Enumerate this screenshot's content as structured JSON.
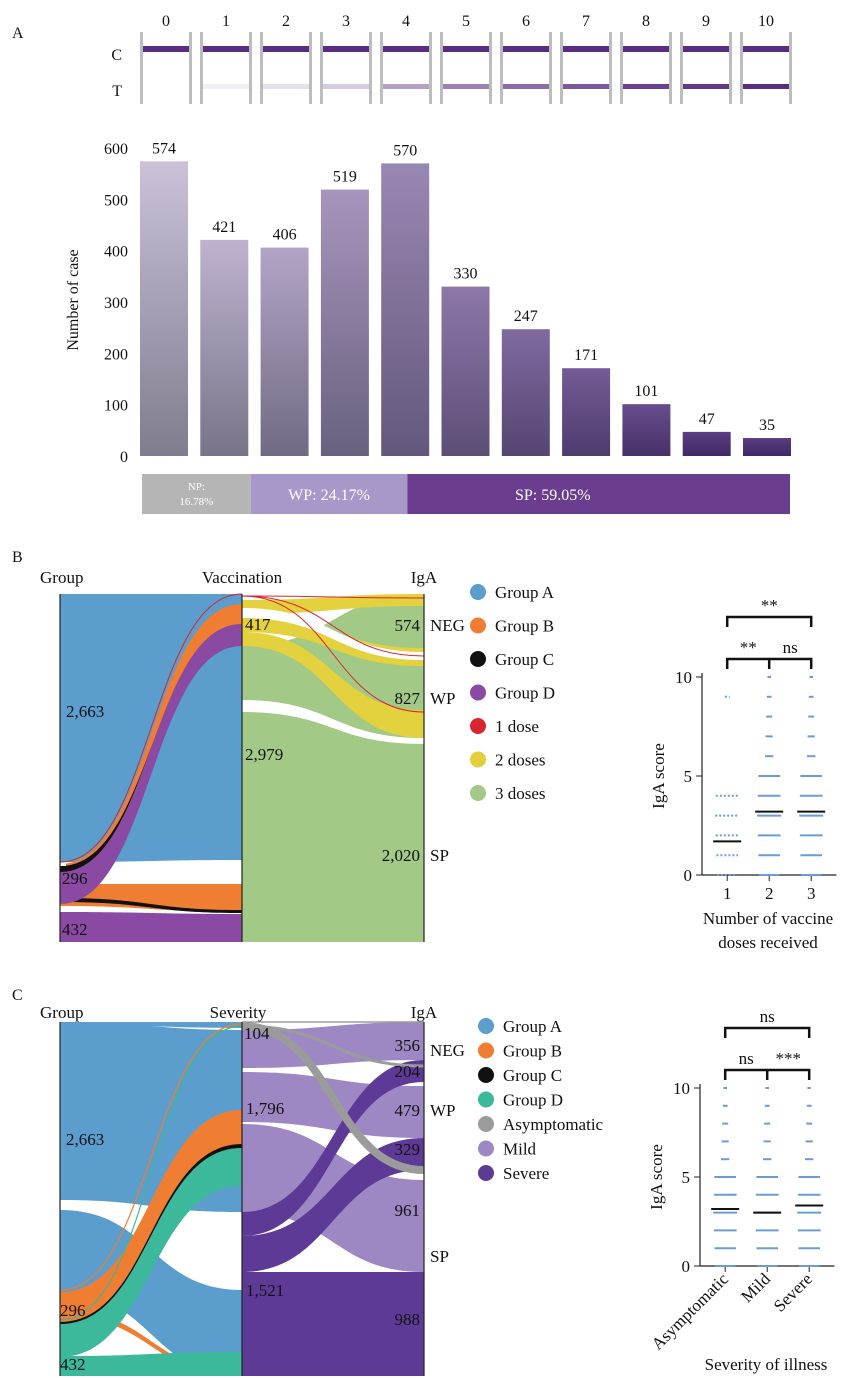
{
  "panels": {
    "a": "A",
    "b": "B",
    "c": "C"
  },
  "colors": {
    "purple_dark": "#4a2a6e",
    "purple_mid": "#6a3d9a",
    "purple_light": "#b7a6cf",
    "np_gray": "#b5b5b5",
    "wp_lavender": "#a897c9",
    "sp_purple": "#6a3d8f",
    "groupA": "#5b9dcc",
    "groupB": "#ef7d32",
    "groupC": "#111111",
    "groupD_b": "#8a4aa3",
    "groupD_c": "#3cb89a",
    "dose1": "#d7262e",
    "dose2": "#e2cf3b",
    "dose3": "#a2c985",
    "asym": "#9b9b9b",
    "mild": "#9e88c4",
    "severe": "#5d3a96"
  },
  "strip": {
    "row_c": "C",
    "row_t": "T",
    "labels": [
      "0",
      "1",
      "2",
      "3",
      "4",
      "5",
      "6",
      "7",
      "8",
      "9",
      "10"
    ],
    "t_intensity": [
      0,
      0.08,
      0.15,
      0.25,
      0.45,
      0.6,
      0.7,
      0.8,
      0.9,
      0.95,
      1.0
    ]
  },
  "chart_data": [
    {
      "type": "bar",
      "ylabel": "Number of case",
      "categories": [
        "0",
        "1",
        "2",
        "3",
        "4",
        "5",
        "6",
        "7",
        "8",
        "9",
        "10"
      ],
      "values": [
        574,
        421,
        406,
        519,
        570,
        330,
        247,
        171,
        101,
        47,
        35
      ],
      "ylim": [
        0,
        600
      ],
      "yticks": [
        "0",
        "100",
        "200",
        "300",
        "400",
        "500",
        "600"
      ],
      "summary": [
        {
          "label": "NP:",
          "label2": "16.78%",
          "fraction": 16.78
        },
        {
          "label": "WP: 24.17%",
          "fraction": 24.17
        },
        {
          "label": "SP: 59.05%",
          "fraction": 59.05
        }
      ]
    },
    {
      "type": "sankey",
      "columns": [
        "Group",
        "Vaccination",
        "IgA"
      ],
      "labels": {
        "groupA": "2,663",
        "groupB": "296",
        "groupD": "432",
        "dose2": "417",
        "dose3": "2,979",
        "neg": "574",
        "wp": "827",
        "sp": "2,020"
      },
      "iga_labels": [
        "NEG",
        "WP",
        "SP"
      ],
      "legend": [
        "Group A",
        "Group B",
        "Group C",
        "Group D",
        "1 dose",
        "2 doses",
        "3 doses"
      ]
    },
    {
      "type": "scatter",
      "ylabel": "IgA score",
      "xlabel": [
        "Number of vaccine",
        "doses received"
      ],
      "categories": [
        "1",
        "2",
        "3"
      ],
      "yticks": [
        "0",
        "5",
        "10"
      ],
      "ylim": [
        0,
        10
      ],
      "medians": [
        1.7,
        3.2,
        3.2
      ],
      "sig": {
        "top": "**",
        "left": "**",
        "right": "ns"
      }
    },
    {
      "type": "sankey",
      "columns": [
        "Group",
        "Severity",
        "IgA"
      ],
      "labels": {
        "groupA": "2,663",
        "groupB": "296",
        "groupD": "432",
        "asym": "104",
        "mild": "1,796",
        "severe": "1,521",
        "neg_mild": "356",
        "neg_sev": "204",
        "wp_mild": "479",
        "wp_sev": "329",
        "sp_mild": "961",
        "sp_sev": "988"
      },
      "iga_labels": [
        "NEG",
        "WP",
        "SP"
      ],
      "legend": [
        "Group A",
        "Group B",
        "Group C",
        "Group D",
        "Asymptomatic",
        "Mild",
        "Severe"
      ]
    },
    {
      "type": "scatter",
      "ylabel": "IgA score",
      "xlabel": "Severity of illness",
      "categories": [
        "Asymptomatic",
        "Mild",
        "Severe"
      ],
      "yticks": [
        "0",
        "5",
        "10"
      ],
      "ylim": [
        0,
        10
      ],
      "medians": [
        3.2,
        3.0,
        3.4
      ],
      "sig": {
        "top": "ns",
        "left": "ns",
        "right": "***"
      }
    }
  ]
}
